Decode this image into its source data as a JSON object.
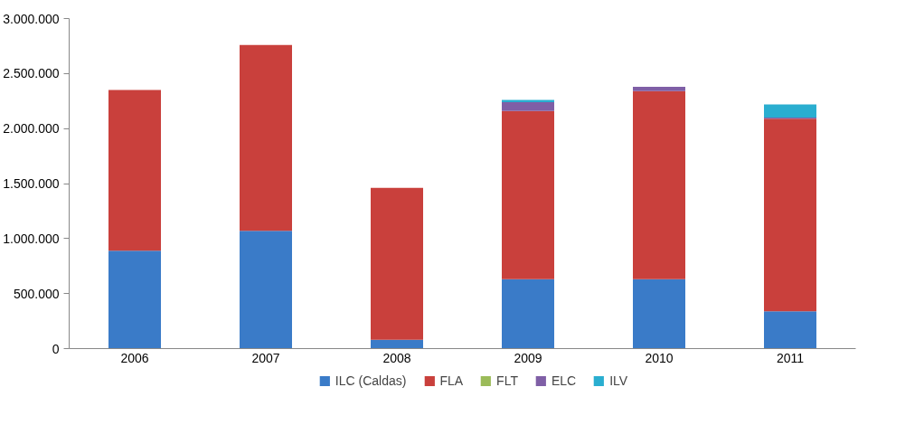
{
  "chart_data": {
    "type": "bar",
    "stacked": true,
    "categories": [
      "2006",
      "2007",
      "2008",
      "2009",
      "2010",
      "2011"
    ],
    "series": [
      {
        "name": "ILC (Caldas)",
        "color": "#3a7bc8",
        "values": [
          890000,
          1070000,
          80000,
          630000,
          630000,
          340000
        ]
      },
      {
        "name": "FLA",
        "color": "#c9403c",
        "values": [
          1460000,
          1690000,
          1380000,
          1530000,
          1710000,
          1750000
        ]
      },
      {
        "name": "FLT",
        "color": "#9bbb59",
        "values": [
          0,
          0,
          0,
          0,
          0,
          0
        ]
      },
      {
        "name": "ELC",
        "color": "#7f5fa6",
        "values": [
          0,
          0,
          0,
          80000,
          40000,
          10000
        ]
      },
      {
        "name": "ILV",
        "color": "#2aaed0",
        "values": [
          0,
          0,
          0,
          20000,
          0,
          120000
        ]
      }
    ],
    "ylim": [
      0,
      3000000
    ],
    "yticks": [
      {
        "value": 0,
        "label": "0"
      },
      {
        "value": 500000,
        "label": "500.000"
      },
      {
        "value": 1000000,
        "label": "1.000.000"
      },
      {
        "value": 1500000,
        "label": "1.500.000"
      },
      {
        "value": 2000000,
        "label": "2.000.000"
      },
      {
        "value": 2500000,
        "label": "2.500.000"
      },
      {
        "value": 3000000,
        "label": "3.000.000"
      }
    ],
    "grid": false,
    "legend": "bottom"
  }
}
